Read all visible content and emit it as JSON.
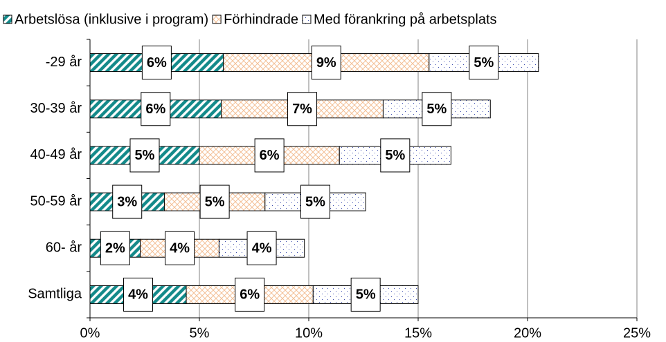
{
  "chart_data": {
    "type": "stacked-bar-horizontal",
    "categories": [
      "-29 år",
      "30-39 år",
      "40-49 år",
      "50-59 år",
      "60- år",
      "Samtliga"
    ],
    "series": [
      {
        "name": "Arbetslösa (inklusive i program)",
        "color": "#138a8a",
        "values": [
          6.1,
          6.0,
          5.0,
          3.4,
          2.3,
          4.4
        ],
        "value_labels": [
          "6%",
          "6%",
          "5%",
          "3%",
          "2%",
          "4%"
        ]
      },
      {
        "name": "Förhindrade",
        "color": "#f4bf96",
        "values": [
          9.4,
          7.4,
          6.4,
          4.6,
          3.6,
          5.8
        ],
        "value_labels": [
          "9%",
          "7%",
          "6%",
          "5%",
          "4%",
          "6%"
        ]
      },
      {
        "name": "Med förankring på arbetsplats",
        "color": "#3e4fb0",
        "values": [
          5.0,
          4.9,
          5.1,
          4.6,
          3.9,
          4.8
        ],
        "value_labels": [
          "5%",
          "5%",
          "5%",
          "5%",
          "4%",
          "5%"
        ]
      }
    ],
    "xlim": [
      0,
      25
    ],
    "xticks": [
      {
        "value": 0,
        "label": "0%"
      },
      {
        "value": 5,
        "label": "5%"
      },
      {
        "value": 10,
        "label": "10%"
      },
      {
        "value": 15,
        "label": "15%"
      },
      {
        "value": 20,
        "label": "20%"
      },
      {
        "value": 25,
        "label": "25%"
      }
    ],
    "grid": true,
    "legend": "top"
  }
}
